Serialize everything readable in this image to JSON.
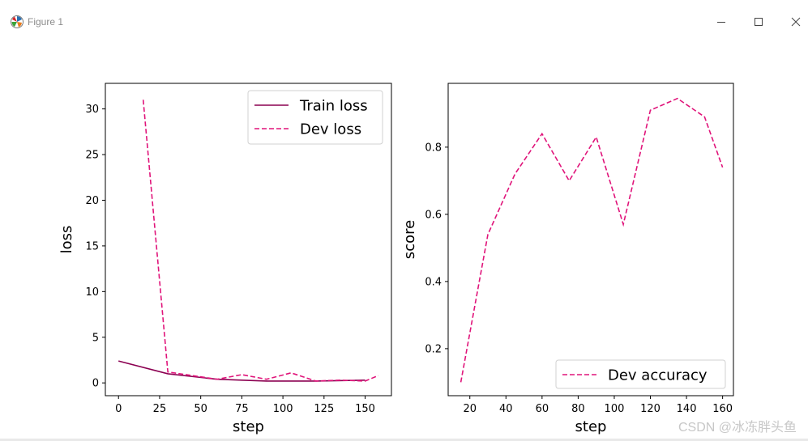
{
  "window": {
    "title": "Figure 1",
    "watermark": "CSDN @冰冻胖头鱼"
  },
  "colors": {
    "train": "#8b0051",
    "dev": "#e0147a",
    "axis": "#000000"
  },
  "chart_data": [
    {
      "type": "line",
      "xlabel": "step",
      "ylabel": "loss",
      "xlim": [
        -8,
        166
      ],
      "ylim": [
        -1.4,
        32.8
      ],
      "xticks": [
        0,
        25,
        50,
        75,
        100,
        125,
        150
      ],
      "yticks": [
        0,
        5,
        10,
        15,
        20,
        25,
        30
      ],
      "legend_position": "upper-right",
      "series": [
        {
          "name": "Train loss",
          "style": "solid",
          "x": [
            0,
            30,
            60,
            90,
            120,
            150
          ],
          "y": [
            2.4,
            1.0,
            0.4,
            0.2,
            0.2,
            0.3
          ]
        },
        {
          "name": "Dev loss",
          "style": "dashed",
          "x": [
            15,
            30,
            45,
            60,
            75,
            90,
            105,
            120,
            135,
            150,
            158
          ],
          "y": [
            31.0,
            1.2,
            0.8,
            0.4,
            0.9,
            0.4,
            1.1,
            0.2,
            0.3,
            0.2,
            0.8
          ]
        }
      ]
    },
    {
      "type": "line",
      "xlabel": "step",
      "ylabel": "score",
      "xlim": [
        8,
        166
      ],
      "ylim": [
        0.06,
        0.99
      ],
      "xticks": [
        20,
        40,
        60,
        80,
        100,
        120,
        140,
        160
      ],
      "yticks": [
        0.2,
        0.4,
        0.6,
        0.8
      ],
      "legend_position": "lower-right",
      "series": [
        {
          "name": "Dev accuracy",
          "style": "dashed",
          "x": [
            15,
            30,
            45,
            60,
            75,
            90,
            105,
            120,
            135,
            150,
            160
          ],
          "y": [
            0.1,
            0.54,
            0.72,
            0.84,
            0.7,
            0.83,
            0.57,
            0.91,
            0.945,
            0.89,
            0.74
          ]
        }
      ]
    }
  ]
}
